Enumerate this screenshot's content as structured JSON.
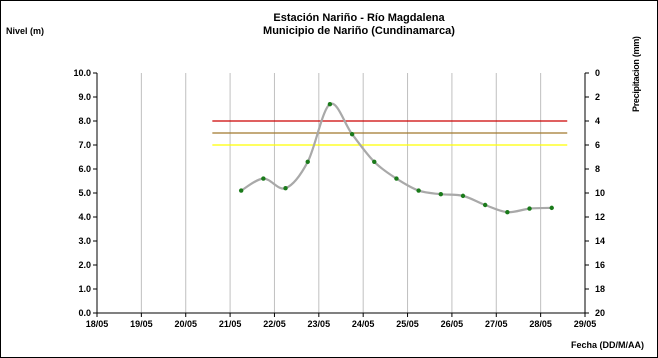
{
  "chart_data": {
    "type": "line",
    "title": "Estación Nariño  - Río Magdalena",
    "subtitle": "Municipio de Nariño (Cundinamarca)",
    "ylabel": "Nivel (m)",
    "xlabel": "Fecha (DD/M/AA)",
    "y2label": "Precipitacion (mm)",
    "ylim": [
      0,
      10
    ],
    "y2lim": [
      20,
      0
    ],
    "xlim": [
      0,
      11
    ],
    "x_tick_labels": [
      "18/05",
      "19/05",
      "20/05",
      "21/05",
      "22/05",
      "23/05",
      "24/05",
      "25/05",
      "26/05",
      "27/05",
      "28/05",
      "29/05"
    ],
    "y_tick_labels": [
      "0.0",
      "1.0",
      "2.0",
      "3.0",
      "4.0",
      "5.0",
      "6.0",
      "7.0",
      "8.0",
      "9.0",
      "10.0"
    ],
    "y2_tick_labels": [
      "20",
      "18",
      "16",
      "14",
      "12",
      "10",
      "8",
      "6",
      "4",
      "2",
      "0"
    ],
    "grid": "vertical",
    "series": [
      {
        "x": [
          3.25,
          3.75,
          4.25,
          4.75,
          5.25,
          5.75,
          6.25,
          6.75,
          7.25,
          7.75,
          8.25,
          8.75,
          9.25,
          9.75,
          10.25
        ],
        "values": [
          5.1,
          5.6,
          5.2,
          6.3,
          8.7,
          7.45,
          6.3,
          5.6,
          5.1,
          4.95,
          4.88,
          4.5,
          4.2,
          4.35,
          4.38
        ],
        "line_color": "#a9a9a9",
        "marker_color": "#1a7a1a"
      }
    ],
    "thresholds": [
      {
        "value": 8.0,
        "color": "#cc0000",
        "x_start": 2.6,
        "x_end": 10.6
      },
      {
        "value": 7.5,
        "color": "#a0782c",
        "x_start": 2.6,
        "x_end": 10.6
      },
      {
        "value": 7.0,
        "color": "#ffff00",
        "x_start": 2.6,
        "x_end": 10.6
      }
    ]
  }
}
